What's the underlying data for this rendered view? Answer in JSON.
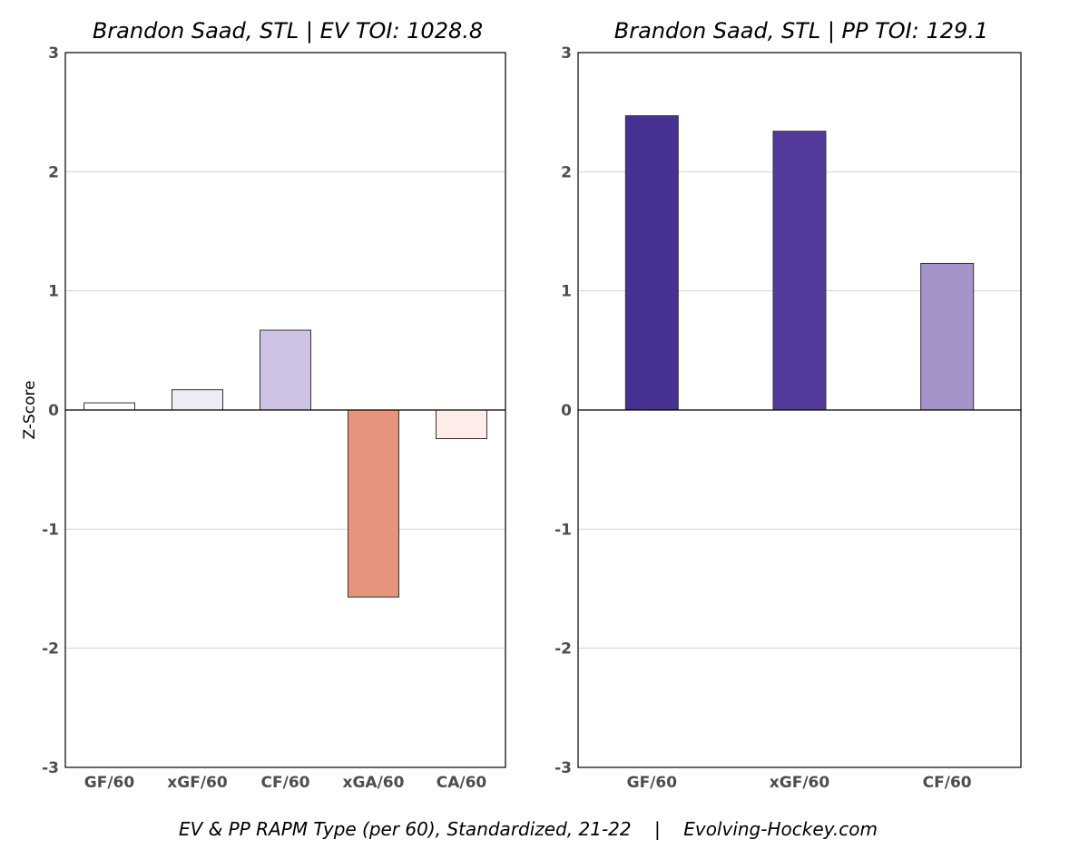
{
  "caption": "EV & PP RAPM Type (per 60), Standardized, 21-22    |    Evolving-Hockey.com",
  "chart_data": [
    {
      "type": "bar",
      "title": "Brandon Saad, STL  |  EV TOI: 1028.8",
      "ylabel": "Z-Score",
      "ylim": [
        -3,
        3
      ],
      "yticks": [
        -3,
        -2,
        -1,
        0,
        1,
        2,
        3
      ],
      "grid": true,
      "categories": [
        "GF/60",
        "xGF/60",
        "CF/60",
        "xGA/60",
        "CA/60"
      ],
      "values": [
        0.06,
        0.17,
        0.67,
        -1.57,
        -0.24
      ],
      "colors": [
        "#ffffff",
        "#eeebf5",
        "#cdc2e3",
        "#e6957c",
        "#fcede8"
      ]
    },
    {
      "type": "bar",
      "title": "Brandon Saad, STL  |  PP TOI: 129.1",
      "ylabel": "",
      "ylim": [
        -3,
        3
      ],
      "yticks": [
        -3,
        -2,
        -1,
        0,
        1,
        2,
        3
      ],
      "grid": true,
      "categories": [
        "GF/60",
        "xGF/60",
        "CF/60"
      ],
      "values": [
        2.47,
        2.34,
        1.23
      ],
      "colors": [
        "#473193",
        "#523a9c",
        "#a493c9"
      ]
    }
  ]
}
